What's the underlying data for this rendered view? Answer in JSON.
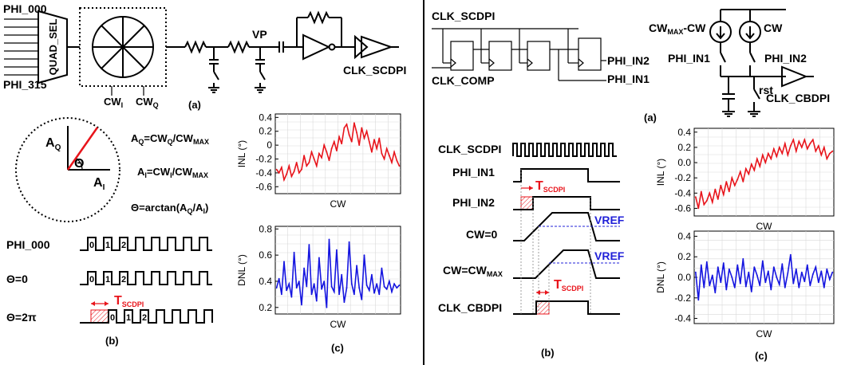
{
  "left": {
    "circuit": {
      "inputs_top": "PHI_000",
      "inputs_bottom": "PHI_315",
      "mux_label": "QUAD_SEL",
      "cw_i": "CW",
      "cw_i_sub": "I",
      "cw_q": "CW",
      "cw_q_sub": "Q",
      "vp_label": "VP",
      "output_label": "CLK_SCDPI",
      "caption_a": "(a)"
    },
    "phasor": {
      "aq_label": "A",
      "aq_sub": "Q",
      "ai_label": "A",
      "ai_sub": "I",
      "theta_label": "Θ",
      "eq1": "A_Q=CW_Q/CW_MAX",
      "eq2": "A_I=CW_I/CW_MAX",
      "eq3": "Θ=arctan(A_Q/A_I)"
    },
    "waveforms": {
      "rows": [
        "PHI_000",
        "Θ=0",
        "Θ=2π"
      ],
      "pulse_labels": [
        "0",
        "1",
        "2"
      ],
      "t_label": "T",
      "t_sub": "SCDPI",
      "caption_b": "(b)"
    },
    "caption_c": "(c)"
  },
  "right": {
    "circuit": {
      "clk_in": "CLK_SCDPI",
      "clk_comp": "CLK_COMP",
      "out1": "PHI_IN2",
      "out2": "PHI_IN1",
      "cs1": "CW",
      "cs1_sub": "MAX",
      "cs1_suffix": "-CW",
      "cs2": "CW",
      "sw1": "PHI_IN1",
      "sw2": "PHI_IN2",
      "rst": "rst",
      "output": "CLK_CBDPI",
      "caption_a": "(a)"
    },
    "timing": {
      "rows": [
        "CLK_SCDPI",
        "PHI_IN1",
        "PHI_IN2",
        "CW=0",
        "CW=CW",
        "CLK_CBDPI"
      ],
      "row5_sub": "MAX",
      "vref": "VREF",
      "t_label": "T",
      "t_sub": "SCDPI",
      "caption_b": "(b)"
    },
    "caption_c": "(c)"
  },
  "colors": {
    "inl": "#e8141b",
    "dnl": "#1515e0",
    "annot": "#e8141b",
    "vref": "#2020d8"
  },
  "chart_data": [
    {
      "type": "line",
      "ylabel": "INL (°)",
      "xlabel": "CW",
      "ylim": [
        -0.7,
        0.45
      ],
      "yticks": [
        "0.4",
        "0.2",
        "0",
        "-0.2",
        "-0.4",
        "-0.6"
      ],
      "grid": true,
      "series": [
        {
          "values": [
            -0.35,
            -0.4,
            -0.32,
            -0.5,
            -0.42,
            -0.3,
            -0.45,
            -0.38,
            -0.25,
            -0.4,
            -0.35,
            -0.15,
            -0.3,
            -0.25,
            -0.1,
            -0.2,
            -0.3,
            -0.12,
            -0.18,
            0.0,
            -0.1,
            -0.22,
            -0.05,
            0.05,
            -0.08,
            0.12,
            0.02,
            0.25,
            0.3,
            0.15,
            0.05,
            0.32,
            0.18,
            0.0,
            0.25,
            0.1,
            0.2,
            0.05,
            -0.1,
            0.08,
            -0.05,
            0.1,
            -0.12,
            -0.2,
            -0.05,
            -0.15,
            -0.25,
            -0.1,
            -0.22,
            -0.3
          ]
        }
      ]
    },
    {
      "type": "line",
      "ylabel": "DNL (°)",
      "xlabel": "CW",
      "ylim": [
        0.15,
        0.82
      ],
      "yticks": [
        "0.8",
        "0.6",
        "0.4",
        "0.2"
      ],
      "grid": true,
      "series": [
        {
          "values": [
            0.35,
            0.42,
            0.3,
            0.55,
            0.33,
            0.38,
            0.28,
            0.62,
            0.35,
            0.4,
            0.22,
            0.5,
            0.36,
            0.68,
            0.3,
            0.38,
            0.25,
            0.58,
            0.34,
            0.4,
            0.2,
            0.72,
            0.36,
            0.32,
            0.64,
            0.3,
            0.45,
            0.24,
            0.35,
            0.7,
            0.38,
            0.3,
            0.52,
            0.35,
            0.26,
            0.6,
            0.37,
            0.33,
            0.45,
            0.31,
            0.38,
            0.3,
            0.5,
            0.36,
            0.34,
            0.4,
            0.32,
            0.38,
            0.35,
            0.37
          ]
        }
      ]
    },
    {
      "type": "line",
      "ylabel": "INL (°)",
      "xlabel": "CW",
      "ylim": [
        -0.7,
        0.45
      ],
      "yticks": [
        "0.4",
        "0.2",
        "0.0",
        "-0.2",
        "-0.4",
        "-0.6"
      ],
      "grid": true,
      "series": [
        {
          "values": [
            -0.45,
            -0.6,
            -0.38,
            -0.55,
            -0.5,
            -0.4,
            -0.52,
            -0.35,
            -0.48,
            -0.3,
            -0.42,
            -0.25,
            -0.38,
            -0.2,
            -0.3,
            -0.22,
            -0.12,
            -0.25,
            -0.08,
            -0.15,
            -0.02,
            -0.1,
            0.05,
            -0.05,
            0.1,
            0.0,
            0.12,
            0.05,
            0.18,
            0.08,
            0.2,
            0.12,
            0.25,
            0.1,
            0.22,
            0.3,
            0.15,
            0.28,
            0.2,
            0.3,
            0.18,
            0.25,
            0.3,
            0.15,
            0.22,
            0.1,
            0.2,
            0.05,
            0.12,
            0.15
          ]
        }
      ]
    },
    {
      "type": "line",
      "ylabel": "DNL (°)",
      "xlabel": "CW",
      "ylim": [
        -0.45,
        0.45
      ],
      "yticks": [
        "0.4",
        "0.2",
        "0.0",
        "-0.2",
        "-0.4"
      ],
      "grid": true,
      "series": [
        {
          "values": [
            0.05,
            -0.22,
            0.12,
            -0.1,
            0.15,
            -0.08,
            0.02,
            -0.15,
            0.1,
            -0.05,
            0.14,
            -0.12,
            0.08,
            0.0,
            -0.1,
            0.12,
            -0.06,
            0.18,
            -0.09,
            0.05,
            -0.14,
            0.1,
            0.02,
            -0.08,
            0.16,
            -0.05,
            0.06,
            -0.12,
            0.1,
            0.0,
            -0.07,
            0.13,
            -0.1,
            0.04,
            0.22,
            -0.06,
            0.08,
            -0.1,
            0.05,
            -0.04,
            0.12,
            -0.08,
            0.03,
            0.1,
            -0.05,
            0.06,
            -0.1,
            0.08,
            -0.02,
            0.05
          ]
        }
      ]
    }
  ]
}
